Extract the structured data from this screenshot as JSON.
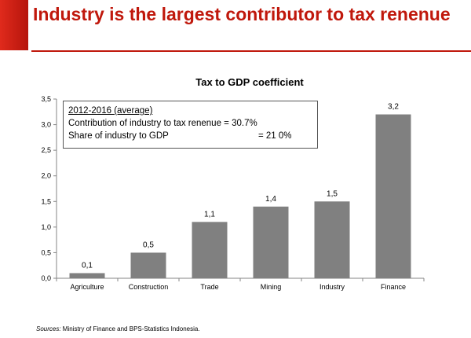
{
  "slide": {
    "title": "Industry is the largest contributor to tax renenue"
  },
  "info_box": {
    "period": "2012-2016 (average)",
    "line1": "Contribution of industry to tax renenue = 30.7%",
    "line2_label": "Share of industry to GDP",
    "line2_value": "= 21 0%"
  },
  "footer": {
    "source_label": "Sources:",
    "source_text": " Ministry of Finance and BPS-Statistics Indonesia."
  },
  "colors": {
    "accent": "#c0180c",
    "bar": "#808080"
  },
  "chart_data": {
    "type": "bar",
    "title": "Tax to GDP coefficient",
    "categories": [
      "Agriculture",
      "Construction",
      "Trade",
      "Mining",
      "Industry",
      "Finance"
    ],
    "values": [
      0.1,
      0.5,
      1.1,
      1.4,
      1.5,
      3.2
    ],
    "data_labels": [
      "0,1",
      "0,5",
      "1,1",
      "1,4",
      "1,5",
      "3,2"
    ],
    "ylim": [
      0,
      3.5
    ],
    "yticks": [
      0,
      0.5,
      1.0,
      1.5,
      2.0,
      2.5,
      3.0,
      3.5
    ],
    "ytick_labels": [
      "0,0",
      "0,5",
      "1,0",
      "1,5",
      "2,0",
      "2,5",
      "3,0",
      "3,5"
    ],
    "xlabel": "",
    "ylabel": "",
    "grid": false
  }
}
